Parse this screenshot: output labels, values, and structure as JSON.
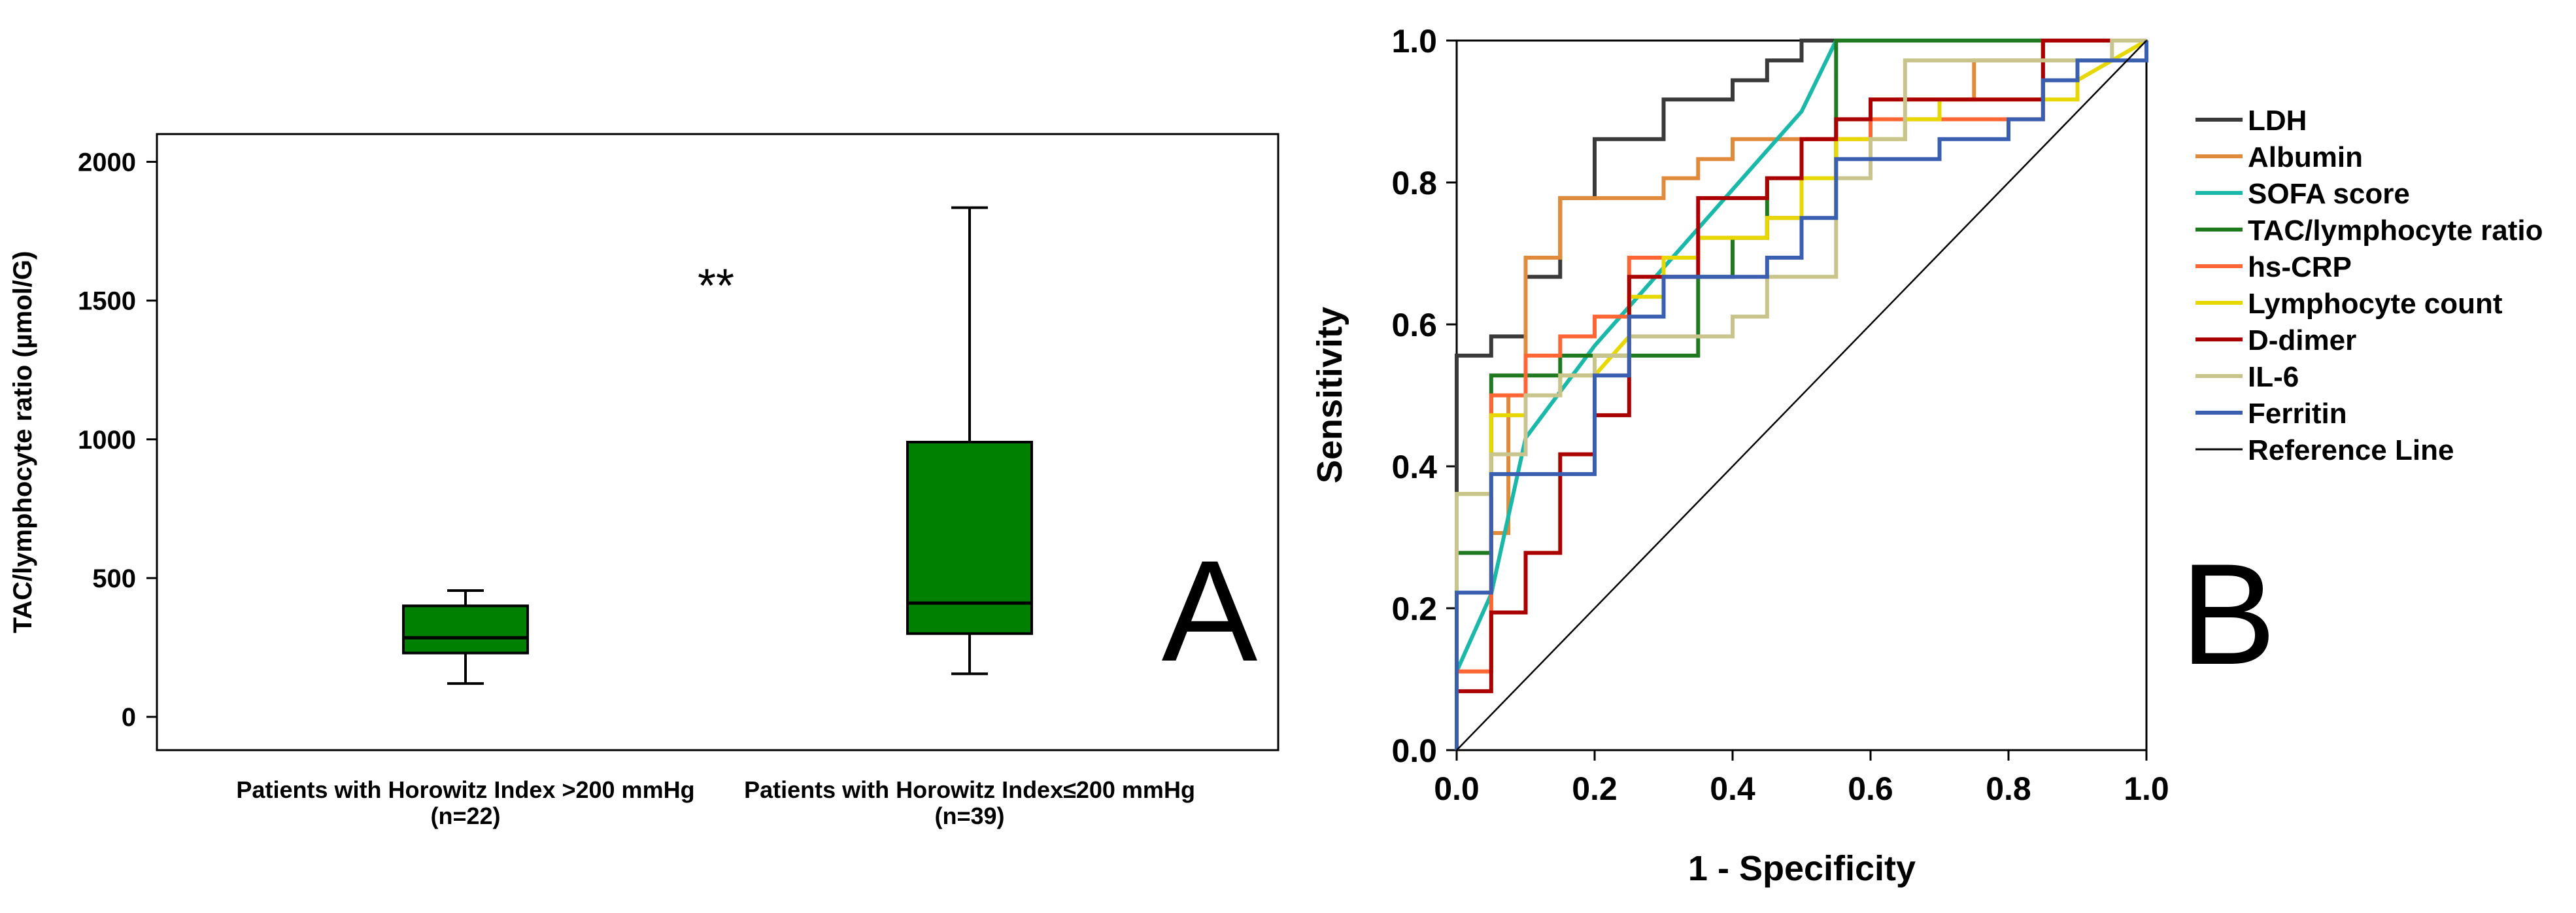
{
  "chart_data": [
    {
      "type": "box",
      "panel_label": "A",
      "ylabel": "TAC/lymphocyte ratio (µmol/G)",
      "ylim": [
        -120,
        2100
      ],
      "yticks": [
        0,
        500,
        1000,
        1500,
        2000
      ],
      "significance": "**",
      "significance_y": 1590,
      "groups": [
        {
          "name": "Patients with Horowitz Index >200 mmHg",
          "n_label": "(n=22)",
          "min": 120,
          "q1": 230,
          "median": 285,
          "q3": 400,
          "max": 455
        },
        {
          "name": "Patients with Horowitz Index≤200 mmHg",
          "n_label": "(n=39)",
          "min": 155,
          "q1": 300,
          "median": 410,
          "q3": 990,
          "max": 1835
        }
      ],
      "box_color": "#008000"
    },
    {
      "type": "line",
      "panel_label": "B",
      "xlabel": "1 - Specificity",
      "ylabel": "Sensitivity",
      "xlim": [
        0,
        1
      ],
      "ylim": [
        0,
        1
      ],
      "ticks": [
        0.0,
        0.2,
        0.4,
        0.6,
        0.8,
        1.0
      ],
      "tick_labels": [
        "0.0",
        "0.2",
        "0.4",
        "0.6",
        "0.8",
        "1.0"
      ],
      "legend_position": "right",
      "series": [
        {
          "name": "LDH",
          "color": "#3a3a3a",
          "step": true,
          "points": [
            [
              0,
              0
            ],
            [
              0,
              0.556
            ],
            [
              0.05,
              0.556
            ],
            [
              0.05,
              0.583
            ],
            [
              0.1,
              0.583
            ],
            [
              0.1,
              0.611
            ],
            [
              0.1,
              0.667
            ],
            [
              0.15,
              0.667
            ],
            [
              0.15,
              0.778
            ],
            [
              0.2,
              0.778
            ],
            [
              0.2,
              0.861
            ],
            [
              0.3,
              0.861
            ],
            [
              0.3,
              0.917
            ],
            [
              0.4,
              0.917
            ],
            [
              0.4,
              0.944
            ],
            [
              0.45,
              0.944
            ],
            [
              0.45,
              0.972
            ],
            [
              0.5,
              0.972
            ],
            [
              0.5,
              1
            ],
            [
              1,
              1
            ]
          ]
        },
        {
          "name": "Albumin",
          "color": "#e08a3c",
          "step": true,
          "points": [
            [
              0,
              0
            ],
            [
              0,
              0.111
            ],
            [
              0.05,
              0.111
            ],
            [
              0.05,
              0.306
            ],
            [
              0.075,
              0.306
            ],
            [
              0.075,
              0.5
            ],
            [
              0.1,
              0.5
            ],
            [
              0.1,
              0.694
            ],
            [
              0.15,
              0.694
            ],
            [
              0.15,
              0.778
            ],
            [
              0.3,
              0.778
            ],
            [
              0.3,
              0.806
            ],
            [
              0.35,
              0.806
            ],
            [
              0.35,
              0.833
            ],
            [
              0.4,
              0.833
            ],
            [
              0.4,
              0.861
            ],
            [
              0.55,
              0.861
            ],
            [
              0.55,
              0.889
            ],
            [
              0.6,
              0.889
            ],
            [
              0.6,
              0.917
            ],
            [
              0.75,
              0.917
            ],
            [
              0.75,
              0.972
            ],
            [
              0.85,
              0.972
            ],
            [
              0.85,
              1
            ],
            [
              1,
              1
            ]
          ]
        },
        {
          "name": "SOFA score",
          "color": "#1ab8a8",
          "step": false,
          "points": [
            [
              0,
              0.111
            ],
            [
              0.05,
              0.22
            ],
            [
              0.1,
              0.44
            ],
            [
              0.2,
              0.57
            ],
            [
              0.3,
              0.68
            ],
            [
              0.4,
              0.79
            ],
            [
              0.5,
              0.9
            ],
            [
              0.55,
              1
            ],
            [
              1,
              1
            ]
          ]
        },
        {
          "name": "TAC/lymphocyte ratio",
          "color": "#1f7a1f",
          "step": true,
          "points": [
            [
              0,
              0
            ],
            [
              0,
              0.278
            ],
            [
              0.05,
              0.278
            ],
            [
              0.05,
              0.528
            ],
            [
              0.15,
              0.528
            ],
            [
              0.15,
              0.556
            ],
            [
              0.35,
              0.556
            ],
            [
              0.35,
              0.667
            ],
            [
              0.4,
              0.667
            ],
            [
              0.4,
              0.722
            ],
            [
              0.45,
              0.722
            ],
            [
              0.45,
              0.806
            ],
            [
              0.55,
              0.806
            ],
            [
              0.55,
              1
            ],
            [
              1,
              1
            ]
          ]
        },
        {
          "name": "hs-CRP",
          "color": "#ff6633",
          "step": true,
          "points": [
            [
              0,
              0
            ],
            [
              0,
              0.111
            ],
            [
              0.05,
              0.111
            ],
            [
              0.05,
              0.5
            ],
            [
              0.1,
              0.5
            ],
            [
              0.1,
              0.556
            ],
            [
              0.15,
              0.556
            ],
            [
              0.15,
              0.583
            ],
            [
              0.2,
              0.583
            ],
            [
              0.2,
              0.611
            ],
            [
              0.25,
              0.611
            ],
            [
              0.25,
              0.694
            ],
            [
              0.35,
              0.694
            ],
            [
              0.35,
              0.722
            ],
            [
              0.45,
              0.722
            ],
            [
              0.45,
              0.75
            ],
            [
              0.5,
              0.75
            ],
            [
              0.5,
              0.861
            ],
            [
              0.6,
              0.861
            ],
            [
              0.6,
              0.889
            ],
            [
              0.85,
              0.889
            ],
            [
              0.85,
              1
            ],
            [
              1,
              1
            ]
          ]
        },
        {
          "name": "Lymphocyte count",
          "color": "#e6d800",
          "step": true,
          "points": [
            [
              0,
              0
            ],
            [
              0,
              0.361
            ],
            [
              0.05,
              0.361
            ],
            [
              0.05,
              0.472
            ],
            [
              0.1,
              0.472
            ],
            [
              0.1,
              0.5
            ],
            [
              0.15,
              0.5
            ],
            [
              0.15,
              0.528
            ],
            [
              0.2,
              0.528
            ],
            [
              0.25,
              0.583
            ],
            [
              0.25,
              0.639
            ],
            [
              0.3,
              0.639
            ],
            [
              0.3,
              0.694
            ],
            [
              0.35,
              0.694
            ],
            [
              0.35,
              0.722
            ],
            [
              0.45,
              0.722
            ],
            [
              0.45,
              0.75
            ],
            [
              0.5,
              0.75
            ],
            [
              0.5,
              0.806
            ],
            [
              0.55,
              0.806
            ],
            [
              0.55,
              0.861
            ],
            [
              0.65,
              0.861
            ],
            [
              0.65,
              0.889
            ],
            [
              0.7,
              0.889
            ],
            [
              0.7,
              0.917
            ],
            [
              0.9,
              0.917
            ],
            [
              0.9,
              0.944
            ],
            [
              0.95,
              0.972
            ],
            [
              1,
              1
            ]
          ]
        },
        {
          "name": "D-dimer",
          "color": "#aa0000",
          "step": true,
          "points": [
            [
              0,
              0
            ],
            [
              0,
              0.083
            ],
            [
              0.05,
              0.083
            ],
            [
              0.05,
              0.194
            ],
            [
              0.1,
              0.194
            ],
            [
              0.1,
              0.278
            ],
            [
              0.15,
              0.278
            ],
            [
              0.15,
              0.417
            ],
            [
              0.2,
              0.417
            ],
            [
              0.2,
              0.472
            ],
            [
              0.25,
              0.472
            ],
            [
              0.25,
              0.667
            ],
            [
              0.35,
              0.667
            ],
            [
              0.35,
              0.778
            ],
            [
              0.45,
              0.778
            ],
            [
              0.45,
              0.806
            ],
            [
              0.5,
              0.806
            ],
            [
              0.5,
              0.861
            ],
            [
              0.55,
              0.861
            ],
            [
              0.55,
              0.889
            ],
            [
              0.6,
              0.889
            ],
            [
              0.6,
              0.917
            ],
            [
              0.85,
              0.917
            ],
            [
              0.85,
              1
            ],
            [
              1,
              1
            ]
          ]
        },
        {
          "name": "IL-6",
          "color": "#c8c48c",
          "step": true,
          "points": [
            [
              0,
              0
            ],
            [
              0,
              0.361
            ],
            [
              0.05,
              0.361
            ],
            [
              0.05,
              0.417
            ],
            [
              0.1,
              0.417
            ],
            [
              0.1,
              0.5
            ],
            [
              0.15,
              0.5
            ],
            [
              0.15,
              0.528
            ],
            [
              0.2,
              0.528
            ],
            [
              0.2,
              0.556
            ],
            [
              0.25,
              0.556
            ],
            [
              0.25,
              0.583
            ],
            [
              0.4,
              0.583
            ],
            [
              0.4,
              0.611
            ],
            [
              0.45,
              0.611
            ],
            [
              0.45,
              0.667
            ],
            [
              0.55,
              0.667
            ],
            [
              0.55,
              0.806
            ],
            [
              0.6,
              0.806
            ],
            [
              0.6,
              0.861
            ],
            [
              0.65,
              0.861
            ],
            [
              0.65,
              0.972
            ],
            [
              0.95,
              0.972
            ],
            [
              0.95,
              1
            ],
            [
              1,
              1
            ]
          ]
        },
        {
          "name": "Ferritin",
          "color": "#3a5fb0",
          "step": true,
          "points": [
            [
              0,
              0
            ],
            [
              0,
              0.222
            ],
            [
              0.05,
              0.222
            ],
            [
              0.05,
              0.389
            ],
            [
              0.2,
              0.389
            ],
            [
              0.2,
              0.528
            ],
            [
              0.25,
              0.528
            ],
            [
              0.25,
              0.611
            ],
            [
              0.3,
              0.611
            ],
            [
              0.3,
              0.667
            ],
            [
              0.45,
              0.667
            ],
            [
              0.45,
              0.694
            ],
            [
              0.5,
              0.694
            ],
            [
              0.5,
              0.75
            ],
            [
              0.55,
              0.75
            ],
            [
              0.55,
              0.833
            ],
            [
              0.7,
              0.833
            ],
            [
              0.7,
              0.861
            ],
            [
              0.8,
              0.861
            ],
            [
              0.8,
              0.889
            ],
            [
              0.85,
              0.889
            ],
            [
              0.85,
              0.944
            ],
            [
              0.9,
              0.944
            ],
            [
              0.9,
              0.972
            ],
            [
              1,
              0.972
            ],
            [
              1,
              1
            ]
          ]
        },
        {
          "name": "Reference Line",
          "color": "#000000",
          "step": false,
          "thin": true,
          "points": [
            [
              0,
              0
            ],
            [
              1,
              1
            ]
          ]
        }
      ]
    }
  ]
}
